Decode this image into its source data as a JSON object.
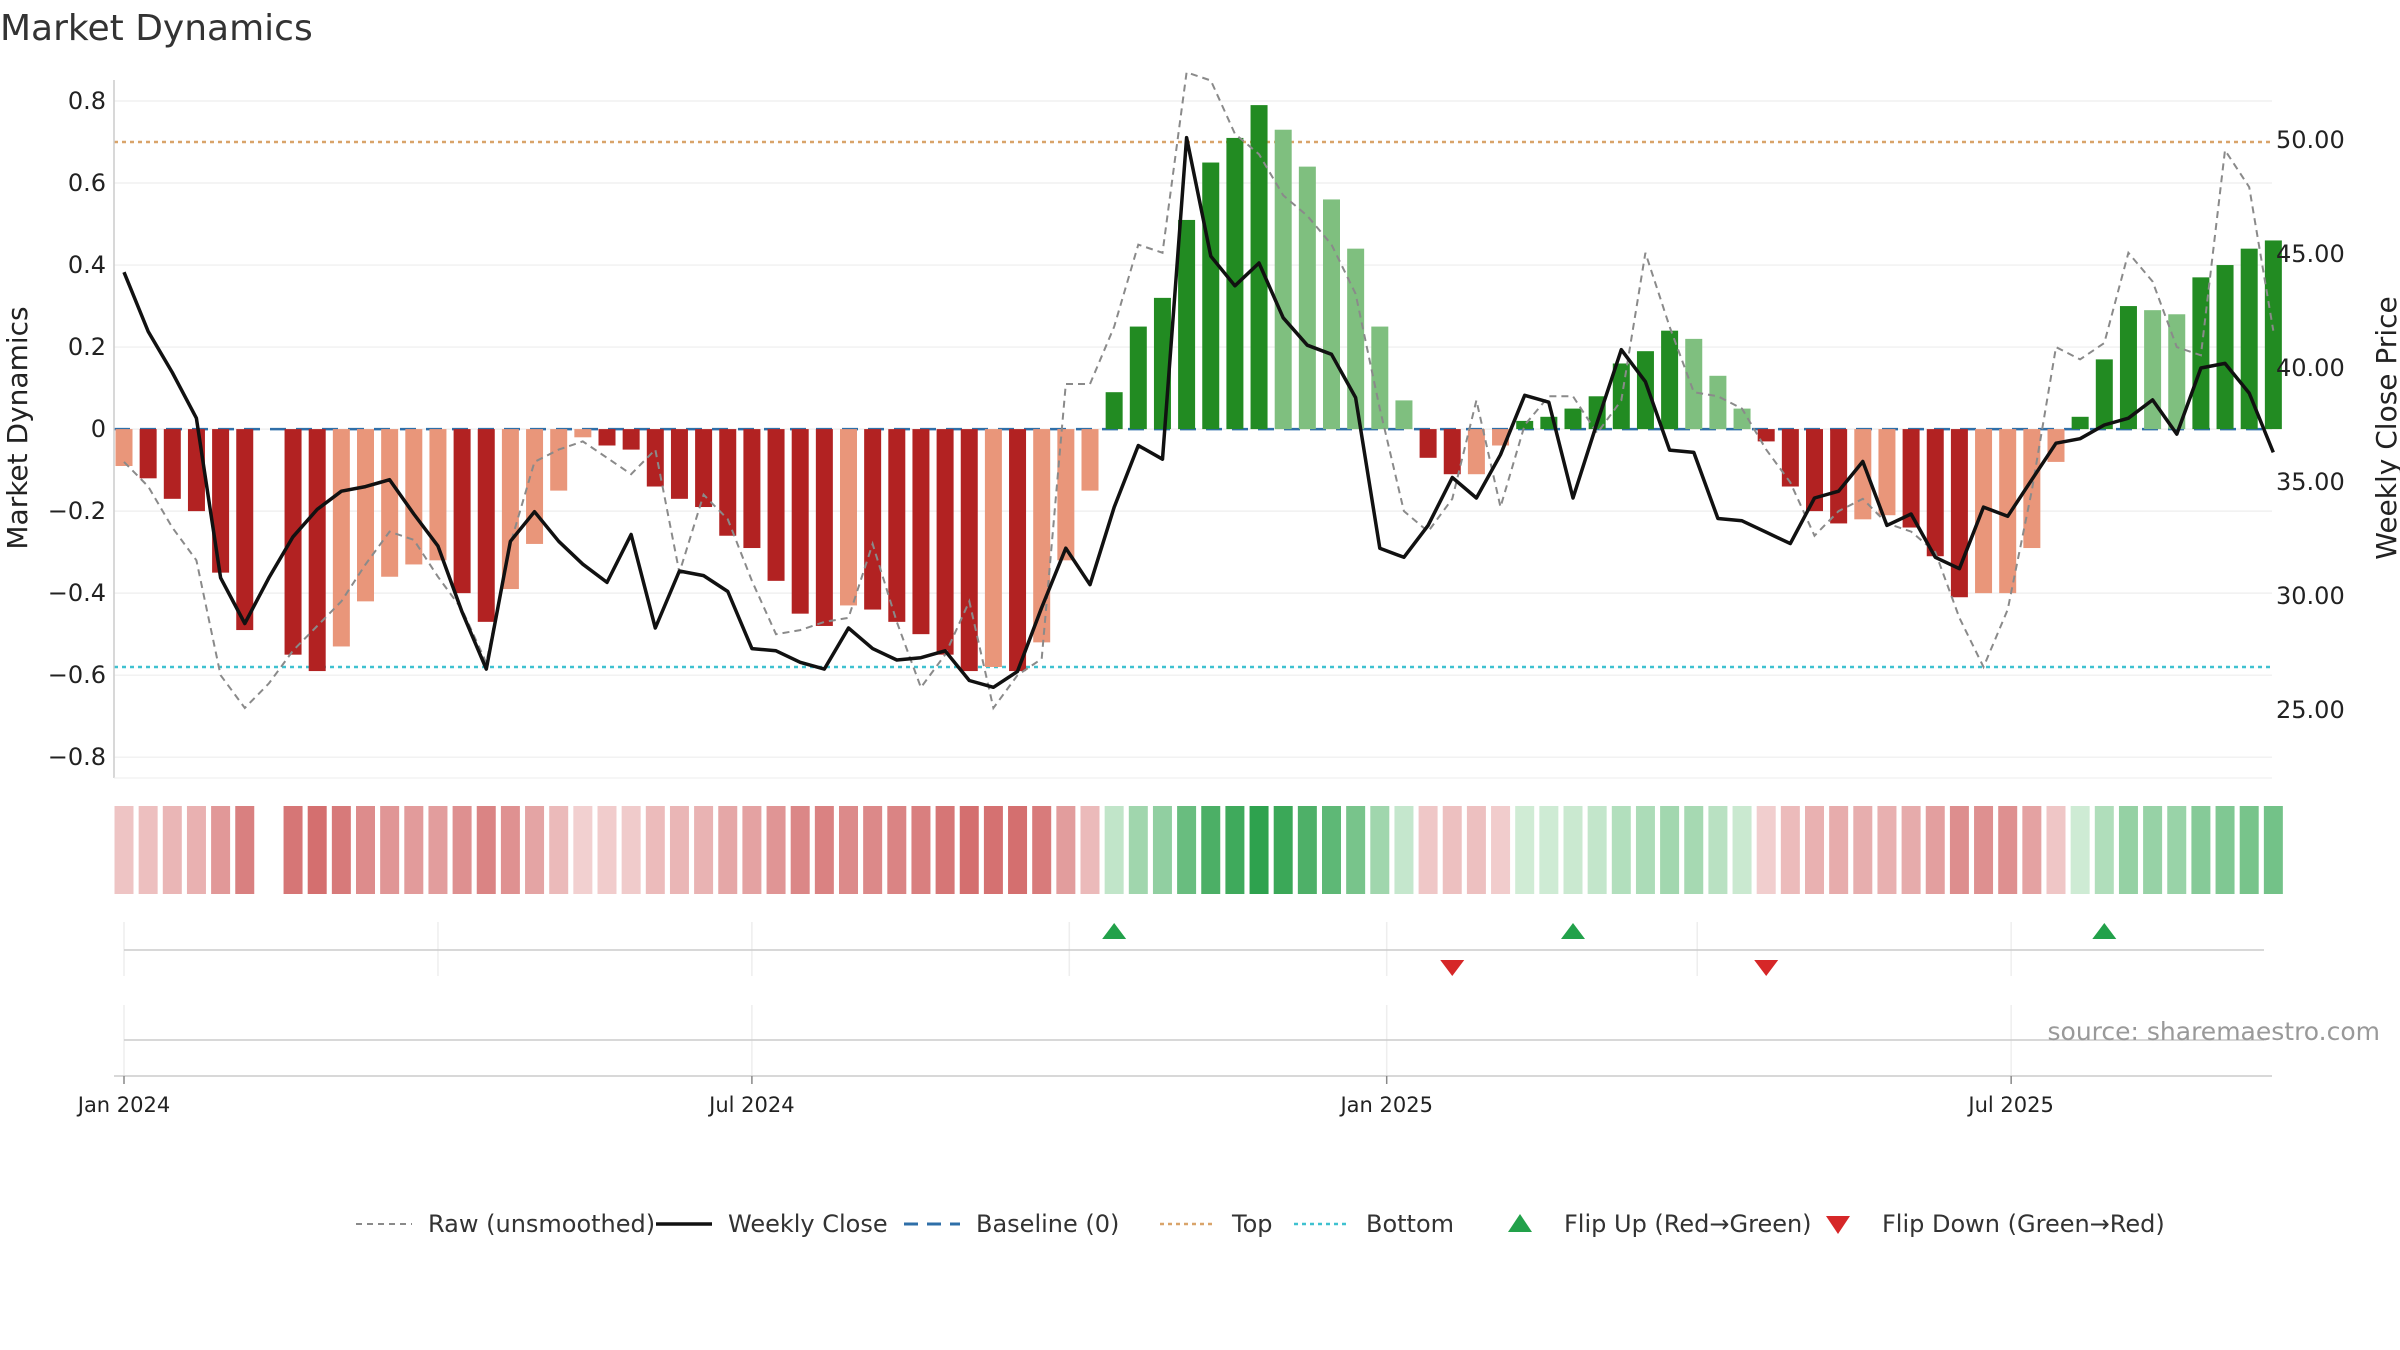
{
  "chart_data": {
    "type": "bar",
    "title": "Market Dynamics",
    "ylabel": "Market Dynamics",
    "y2label": "Weekly Close Price",
    "ylim": [
      -0.88,
      0.9
    ],
    "y2lim": [
      21.5,
      53.5
    ],
    "yticks": [
      "0.8",
      "0.6",
      "0.4",
      "0.2",
      "0",
      "−0.2",
      "−0.4",
      "−0.6",
      "−0.8"
    ],
    "y2ticks": [
      "50.00",
      "45.00",
      "40.00",
      "35.00",
      "30.00",
      "25.00"
    ],
    "x_start": "2024-01-01",
    "x_interval_days": 7,
    "xticks": [
      "Jan 2024",
      "Jul 2024",
      "Jan 2025",
      "Jul 2025"
    ],
    "top_level": 0.7,
    "bottom_level": -0.58,
    "baseline": 0,
    "dynamics": [
      -0.09,
      -0.12,
      -0.17,
      -0.2,
      -0.35,
      -0.49,
      null,
      -0.55,
      -0.59,
      -0.53,
      -0.42,
      -0.36,
      -0.33,
      -0.32,
      -0.4,
      -0.47,
      -0.39,
      -0.28,
      -0.15,
      -0.02,
      -0.04,
      -0.05,
      -0.14,
      -0.17,
      -0.19,
      -0.26,
      -0.29,
      -0.37,
      -0.45,
      -0.48,
      -0.43,
      -0.44,
      -0.47,
      -0.5,
      -0.55,
      -0.59,
      -0.58,
      -0.59,
      -0.52,
      -0.32,
      -0.15,
      0.09,
      0.25,
      0.32,
      0.51,
      0.65,
      0.71,
      0.79,
      0.73,
      0.64,
      0.56,
      0.44,
      0.25,
      0.07,
      -0.07,
      -0.11,
      -0.11,
      -0.04,
      0.02,
      0.03,
      0.05,
      0.08,
      0.16,
      0.19,
      0.24,
      0.22,
      0.13,
      0.05,
      -0.03,
      -0.14,
      -0.2,
      -0.23,
      -0.22,
      -0.21,
      -0.24,
      -0.31,
      -0.41,
      -0.4,
      -0.4,
      -0.29,
      -0.08,
      0.03,
      0.17,
      0.3,
      0.29,
      0.28,
      0.37,
      0.4,
      0.44,
      0.46
    ],
    "raw": [
      -0.08,
      -0.14,
      -0.24,
      -0.32,
      -0.6,
      -0.68,
      -0.62,
      -0.54,
      -0.48,
      -0.42,
      -0.33,
      -0.25,
      -0.27,
      -0.36,
      -0.44,
      -0.57,
      -0.28,
      -0.08,
      -0.05,
      -0.03,
      -0.07,
      -0.11,
      -0.05,
      -0.35,
      -0.16,
      -0.22,
      -0.37,
      -0.5,
      -0.49,
      -0.47,
      -0.46,
      -0.28,
      -0.47,
      -0.63,
      -0.55,
      -0.42,
      -0.68,
      -0.6,
      -0.56,
      0.11,
      0.11,
      0.25,
      0.45,
      0.43,
      0.87,
      0.85,
      0.72,
      0.67,
      0.57,
      0.52,
      0.45,
      0.33,
      0.05,
      -0.2,
      -0.25,
      -0.17,
      0.07,
      -0.19,
      0.01,
      0.08,
      0.08,
      -0.01,
      0.07,
      0.43,
      0.25,
      0.09,
      0.08,
      0.05,
      -0.05,
      -0.13,
      -0.26,
      -0.2,
      -0.17,
      -0.23,
      -0.25,
      -0.3,
      -0.46,
      -0.58,
      -0.44,
      -0.15,
      0.2,
      0.17,
      0.21,
      0.43,
      0.36,
      0.2,
      0.18,
      0.68,
      0.59,
      0.24
    ],
    "weekly_close": [
      44.2,
      41.6,
      39.8,
      37.8,
      30.8,
      28.8,
      30.8,
      32.6,
      33.8,
      34.6,
      34.8,
      35.1,
      33.6,
      32.2,
      29.3,
      26.8,
      32.4,
      33.7,
      32.4,
      31.4,
      30.6,
      32.7,
      28.6,
      31.1,
      30.9,
      30.2,
      27.7,
      27.6,
      27.1,
      26.8,
      28.6,
      27.7,
      27.2,
      27.3,
      27.6,
      26.3,
      26.0,
      26.7,
      29.5,
      32.1,
      30.5,
      33.9,
      36.6,
      36.0,
      50.1,
      44.9,
      43.6,
      44.6,
      42.2,
      41.0,
      40.6,
      38.7,
      32.1,
      31.7,
      33.1,
      35.2,
      34.3,
      36.2,
      38.8,
      38.5,
      34.3,
      37.6,
      40.8,
      39.4,
      36.4,
      36.3,
      33.4,
      33.3,
      32.8,
      32.3,
      34.3,
      34.6,
      35.9,
      33.1,
      33.6,
      31.7,
      31.2,
      33.9,
      33.5,
      35.1,
      36.7,
      36.9,
      37.5,
      37.8,
      38.6,
      37.1,
      40.0,
      40.2,
      38.9,
      36.3
    ],
    "heat_colors": {
      "neg_strong": "#c94c4c",
      "neg_weak": "#f3d3d3",
      "pos_strong": "#2ca14c",
      "pos_weak": "#d4eed9"
    },
    "bar_colors": {
      "neg_strong": "#b22222",
      "neg_weak": "#e9967a",
      "pos_strong": "#228b22",
      "pos_weak": "#7fbf7f"
    },
    "flips": [
      {
        "type": "up",
        "date": "2024-10-14"
      },
      {
        "type": "down",
        "date": "2025-01-20"
      },
      {
        "type": "up",
        "date": "2025-02-24"
      },
      {
        "type": "down",
        "date": "2025-04-21"
      },
      {
        "type": "up",
        "date": "2025-07-28"
      }
    ],
    "legend": [
      {
        "label": "Raw (unsmoothed)",
        "style": "dashed-gray"
      },
      {
        "label": "Weekly Close",
        "style": "solid-black"
      },
      {
        "label": "Baseline (0)",
        "style": "dashed-blue"
      },
      {
        "label": "Top",
        "style": "dotted-orange"
      },
      {
        "label": "Bottom",
        "style": "dotted-cyan"
      },
      {
        "label": "Flip Up (Red→Green)",
        "style": "triangle-up-green"
      },
      {
        "label": "Flip Down (Green→Red)",
        "style": "triangle-down-red"
      }
    ],
    "legend_placement": "bottom",
    "source": "source: sharemaestro.com",
    "grid": true
  }
}
